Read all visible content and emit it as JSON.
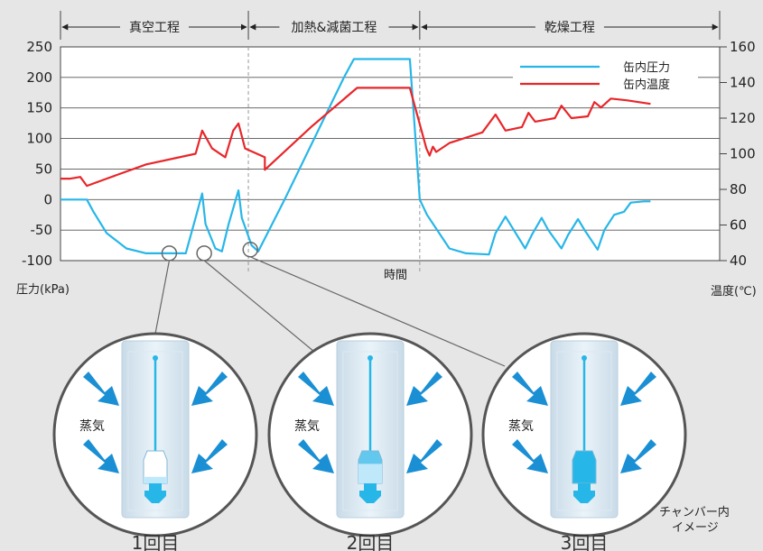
{
  "chart_data": {
    "type": "line",
    "x_label": "時間",
    "y_left": {
      "label": "圧力(kPa)",
      "ticks": [
        250,
        200,
        150,
        100,
        50,
        0,
        -50,
        -100
      ],
      "ylim": [
        -100,
        250
      ]
    },
    "y_right": {
      "label": "温度(℃)",
      "ticks": [
        160,
        140,
        120,
        100,
        80,
        60,
        40
      ],
      "ylim": [
        40,
        160
      ]
    },
    "phases": [
      {
        "label": "真空工程",
        "x_range": [
          0,
          0.285
        ]
      },
      {
        "label": "加熱&減菌工程",
        "x_range": [
          0.285,
          0.545
        ]
      },
      {
        "label": "乾燥工程",
        "x_range": [
          0.545,
          1.0
        ]
      }
    ],
    "grid": true,
    "legend_position": "top-right",
    "series": [
      {
        "name": "缶内圧力",
        "axis": "left",
        "color": "#27b6e8",
        "points": [
          [
            0.0,
            0
          ],
          [
            0.04,
            0
          ],
          [
            0.05,
            -20
          ],
          [
            0.07,
            -55
          ],
          [
            0.1,
            -80
          ],
          [
            0.13,
            -88
          ],
          [
            0.19,
            -88
          ],
          [
            0.205,
            -30
          ],
          [
            0.215,
            10
          ],
          [
            0.22,
            -40
          ],
          [
            0.235,
            -80
          ],
          [
            0.245,
            -85
          ],
          [
            0.255,
            -40
          ],
          [
            0.27,
            15
          ],
          [
            0.275,
            -30
          ],
          [
            0.29,
            -75
          ],
          [
            0.3,
            -85
          ],
          [
            0.34,
            0
          ],
          [
            0.43,
            200
          ],
          [
            0.445,
            230
          ],
          [
            0.53,
            230
          ],
          [
            0.545,
            0
          ],
          [
            0.556,
            -25
          ],
          [
            0.59,
            -80
          ],
          [
            0.615,
            -88
          ],
          [
            0.65,
            -90
          ],
          [
            0.66,
            -55
          ],
          [
            0.675,
            -28
          ],
          [
            0.685,
            -45
          ],
          [
            0.705,
            -80
          ],
          [
            0.715,
            -58
          ],
          [
            0.73,
            -30
          ],
          [
            0.74,
            -50
          ],
          [
            0.76,
            -80
          ],
          [
            0.77,
            -58
          ],
          [
            0.785,
            -32
          ],
          [
            0.795,
            -50
          ],
          [
            0.815,
            -82
          ],
          [
            0.825,
            -50
          ],
          [
            0.84,
            -25
          ],
          [
            0.855,
            -20
          ],
          [
            0.865,
            -5
          ],
          [
            0.885,
            -3
          ],
          [
            0.895,
            -3
          ]
        ]
      },
      {
        "name": "缶内温度",
        "axis": "right",
        "color": "#e8262a",
        "points": [
          [
            0.0,
            86
          ],
          [
            0.015,
            86
          ],
          [
            0.03,
            87
          ],
          [
            0.04,
            82
          ],
          [
            0.07,
            86
          ],
          [
            0.13,
            94
          ],
          [
            0.205,
            100
          ],
          [
            0.215,
            113
          ],
          [
            0.23,
            103
          ],
          [
            0.25,
            98
          ],
          [
            0.262,
            113
          ],
          [
            0.27,
            117
          ],
          [
            0.28,
            103
          ],
          [
            0.31,
            98
          ],
          [
            0.31,
            91
          ],
          [
            0.38,
            115
          ],
          [
            0.45,
            137
          ],
          [
            0.53,
            137
          ],
          [
            0.555,
            103
          ],
          [
            0.56,
            99
          ],
          [
            0.565,
            104
          ],
          [
            0.57,
            101
          ],
          [
            0.59,
            106
          ],
          [
            0.64,
            112
          ],
          [
            0.66,
            122
          ],
          [
            0.675,
            113
          ],
          [
            0.7,
            115
          ],
          [
            0.71,
            123
          ],
          [
            0.72,
            118
          ],
          [
            0.75,
            120
          ],
          [
            0.76,
            127
          ],
          [
            0.775,
            120
          ],
          [
            0.8,
            121
          ],
          [
            0.81,
            129
          ],
          [
            0.82,
            126
          ],
          [
            0.835,
            131
          ],
          [
            0.86,
            130
          ],
          [
            0.895,
            128
          ]
        ]
      }
    ]
  },
  "insets": [
    {
      "caption": "1回目",
      "steam_label": "蒸気",
      "fill_level": 0.2
    },
    {
      "caption": "2回目",
      "steam_label": "蒸気",
      "fill_level": 0.6
    },
    {
      "caption": "3回目",
      "steam_label": "蒸気",
      "fill_level": 1.0
    }
  ],
  "note": [
    "チャンバー内",
    "イメージ"
  ],
  "colors": {
    "background": "#e6e6e6",
    "pressure": "#27b6e8",
    "temperature": "#e8262a",
    "arrow": "#1a8fd4",
    "fill_light": "#bfe9fb",
    "fill_dark": "#27b6e8"
  }
}
